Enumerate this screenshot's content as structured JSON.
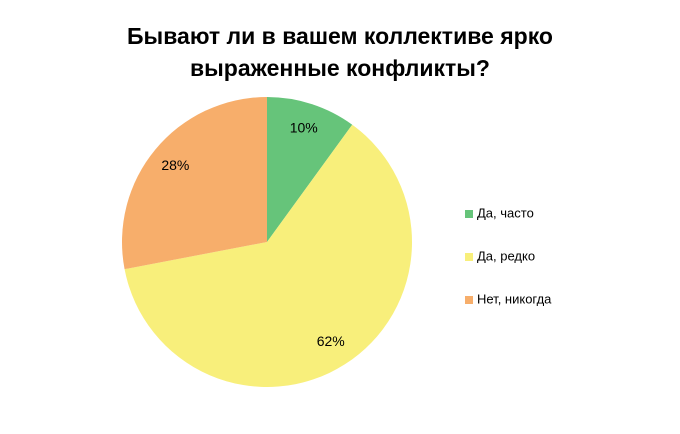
{
  "chart_data": {
    "type": "pie",
    "title": "Бывают ли в вашем коллективе ярко выраженные конфликты?",
    "categories": [
      "Да, часто",
      "Да, редко",
      "Нет, никогда"
    ],
    "values": [
      10,
      62,
      28
    ],
    "value_labels": [
      "10%",
      "62%",
      "28%"
    ],
    "colors": [
      "#66c47a",
      "#f8ef7b",
      "#f7ae6b"
    ],
    "legend": "right"
  }
}
